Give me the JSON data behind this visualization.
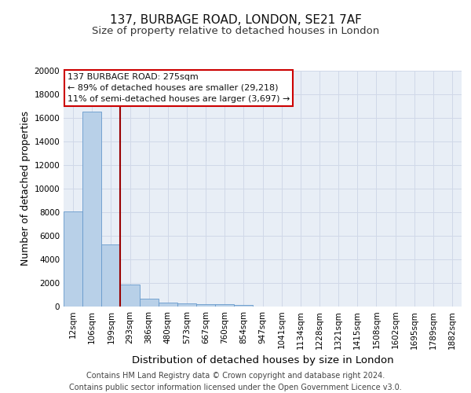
{
  "title1": "137, BURBAGE ROAD, LONDON, SE21 7AF",
  "title2": "Size of property relative to detached houses in London",
  "xlabel": "Distribution of detached houses by size in London",
  "ylabel": "Number of detached properties",
  "categories": [
    "12sqm",
    "106sqm",
    "199sqm",
    "293sqm",
    "386sqm",
    "480sqm",
    "573sqm",
    "667sqm",
    "760sqm",
    "854sqm",
    "947sqm",
    "1041sqm",
    "1134sqm",
    "1228sqm",
    "1321sqm",
    "1415sqm",
    "1508sqm",
    "1602sqm",
    "1695sqm",
    "1789sqm",
    "1882sqm"
  ],
  "values": [
    8100,
    16500,
    5300,
    1850,
    700,
    350,
    250,
    200,
    175,
    150,
    0,
    0,
    0,
    0,
    0,
    0,
    0,
    0,
    0,
    0,
    0
  ],
  "bar_color": "#b8d0e8",
  "bar_edge_color": "#6699cc",
  "background_color": "#e8eef6",
  "grid_color": "#d0d8e8",
  "vline_color": "#990000",
  "ylim": [
    0,
    20000
  ],
  "yticks": [
    0,
    2000,
    4000,
    6000,
    8000,
    10000,
    12000,
    14000,
    16000,
    18000,
    20000
  ],
  "annotation_line1": "137 BURBAGE ROAD: 275sqm",
  "annotation_line2": "← 89% of detached houses are smaller (29,218)",
  "annotation_line3": "11% of semi-detached houses are larger (3,697) →",
  "footer": "Contains HM Land Registry data © Crown copyright and database right 2024.\nContains public sector information licensed under the Open Government Licence v3.0.",
  "title_fontsize": 11,
  "subtitle_fontsize": 9.5,
  "axis_label_fontsize": 9,
  "tick_fontsize": 7.5,
  "annotation_fontsize": 8,
  "footer_fontsize": 7
}
